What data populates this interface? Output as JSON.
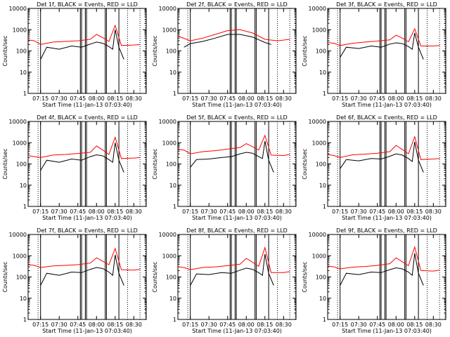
{
  "colors": {
    "events": "#000000",
    "lld": "#ff0000",
    "axes": "#000000",
    "background": "#ffffff"
  },
  "chart_data": [
    {
      "type": "line",
      "title": "Det  1f, BLACK = Events, RED = LLD",
      "xlabel": "Start Time (11-Jan-13 07:03:40)",
      "ylabel": "Counts/sec",
      "ylog": true,
      "ylim": [
        1,
        10000
      ],
      "xticks": [
        "07:15",
        "07:30",
        "07:45",
        "08:00",
        "08:15",
        "08:30"
      ],
      "yticks": [
        "1",
        "10",
        "100",
        "1000",
        "10000"
      ],
      "series": [
        {
          "name": "Events",
          "x": [
            "07:15",
            "07:20",
            "07:30",
            "07:40",
            "07:48",
            "07:55",
            "08:00",
            "08:05",
            "08:10",
            "08:13",
            "08:15",
            "08:18",
            "08:22"
          ],
          "y": [
            40,
            150,
            120,
            170,
            150,
            210,
            260,
            230,
            160,
            120,
            1000,
            150,
            40
          ]
        },
        {
          "name": "LLD",
          "x": [
            "07:05",
            "07:10",
            "07:15",
            "07:25",
            "07:35",
            "07:45",
            "07:55",
            "08:00",
            "08:05",
            "08:10",
            "08:15",
            "08:20",
            "08:30",
            "08:35"
          ],
          "y": [
            330,
            300,
            200,
            260,
            280,
            300,
            350,
            600,
            420,
            280,
            1600,
            180,
            190,
            200
          ]
        }
      ]
    },
    {
      "type": "line",
      "title": "Det  2f, BLACK = Events, RED = LLD",
      "xlabel": "Start Time (11-Jan-13 07:03:40)",
      "ylabel": "Counts/sec",
      "ylog": true,
      "ylim": [
        1,
        10000
      ],
      "xticks": [
        "07:15",
        "07:30",
        "07:45",
        "08:00",
        "08:15",
        "08:30"
      ],
      "yticks": [
        "1",
        "10",
        "100",
        "1000",
        "10000"
      ],
      "series": [
        {
          "name": "Events",
          "x": [
            "07:10",
            "07:15",
            "07:25",
            "07:35",
            "07:45",
            "07:55",
            "08:05",
            "08:15",
            "08:20"
          ],
          "y": [
            150,
            220,
            280,
            400,
            600,
            600,
            450,
            250,
            200
          ]
        },
        {
          "name": "LLD",
          "x": [
            "07:05",
            "07:15",
            "07:25",
            "07:35",
            "07:45",
            "07:55",
            "08:05",
            "08:15",
            "08:25",
            "08:35"
          ],
          "y": [
            500,
            300,
            400,
            600,
            900,
            1000,
            700,
            350,
            300,
            350
          ]
        }
      ]
    },
    {
      "type": "line",
      "title": "Det  3f, BLACK = Events, RED = LLD",
      "xlabel": "Start Time (11-Jan-13 07:03:40)",
      "ylabel": "Counts/sec",
      "ylog": true,
      "ylim": [
        1,
        10000
      ],
      "xticks": [
        "07:15",
        "07:30",
        "07:45",
        "08:00",
        "08:15",
        "08:30"
      ],
      "yticks": [
        "1",
        "10",
        "100",
        "1000",
        "10000"
      ],
      "series": [
        {
          "name": "Events",
          "x": [
            "07:15",
            "07:20",
            "07:30",
            "07:40",
            "07:48",
            "07:55",
            "08:00",
            "08:05",
            "08:10",
            "08:13",
            "08:15",
            "08:18",
            "08:22"
          ],
          "y": [
            50,
            150,
            130,
            170,
            150,
            210,
            240,
            220,
            160,
            120,
            700,
            150,
            40
          ]
        },
        {
          "name": "LLD",
          "x": [
            "07:05",
            "07:10",
            "07:15",
            "07:25",
            "07:35",
            "07:45",
            "07:55",
            "08:00",
            "08:05",
            "08:10",
            "08:15",
            "08:20",
            "08:30",
            "08:35"
          ],
          "y": [
            250,
            230,
            180,
            230,
            260,
            290,
            330,
            550,
            400,
            270,
            1100,
            170,
            170,
            180
          ]
        }
      ]
    },
    {
      "type": "line",
      "title": "Det  4f, BLACK = Events, RED = LLD",
      "xlabel": "Start Time (11-Jan-13 07:03:40)",
      "ylabel": "Counts/sec",
      "ylog": true,
      "ylim": [
        1,
        10000
      ],
      "xticks": [
        "07:15",
        "07:30",
        "07:45",
        "08:00",
        "08:15",
        "08:30"
      ],
      "yticks": [
        "1",
        "10",
        "100",
        "1000",
        "10000"
      ],
      "series": [
        {
          "name": "Events",
          "x": [
            "07:15",
            "07:20",
            "07:30",
            "07:40",
            "07:48",
            "07:55",
            "08:00",
            "08:05",
            "08:10",
            "08:13",
            "08:15",
            "08:18",
            "08:22"
          ],
          "y": [
            50,
            150,
            120,
            170,
            150,
            220,
            270,
            240,
            160,
            120,
            1000,
            150,
            40
          ]
        },
        {
          "name": "LLD",
          "x": [
            "07:05",
            "07:10",
            "07:15",
            "07:25",
            "07:35",
            "07:45",
            "07:55",
            "08:00",
            "08:05",
            "08:10",
            "08:15",
            "08:20",
            "08:30",
            "08:35"
          ],
          "y": [
            250,
            220,
            200,
            260,
            280,
            310,
            350,
            700,
            450,
            280,
            1800,
            180,
            190,
            200
          ]
        }
      ]
    },
    {
      "type": "line",
      "title": "Det  5f, BLACK = Events, RED = LLD",
      "xlabel": "Start Time (11-Jan-13 07:03:40)",
      "ylabel": "Counts/sec",
      "ylog": true,
      "ylim": [
        1,
        10000
      ],
      "xticks": [
        "07:15",
        "07:30",
        "07:45",
        "08:00",
        "08:15",
        "08:30"
      ],
      "yticks": [
        "1",
        "10",
        "100",
        "1000",
        "10000"
      ],
      "series": [
        {
          "name": "Events",
          "x": [
            "07:15",
            "07:20",
            "07:30",
            "07:40",
            "07:48",
            "07:55",
            "08:00",
            "08:05",
            "08:10",
            "08:13",
            "08:15",
            "08:18",
            "08:22"
          ],
          "y": [
            70,
            160,
            170,
            200,
            220,
            300,
            350,
            320,
            220,
            180,
            1200,
            150,
            40
          ]
        },
        {
          "name": "LLD",
          "x": [
            "07:05",
            "07:10",
            "07:15",
            "07:25",
            "07:35",
            "07:45",
            "07:55",
            "08:00",
            "08:05",
            "08:10",
            "08:15",
            "08:20",
            "08:30",
            "08:35"
          ],
          "y": [
            480,
            450,
            300,
            380,
            420,
            500,
            600,
            900,
            650,
            450,
            2200,
            260,
            250,
            280
          ]
        }
      ]
    },
    {
      "type": "line",
      "title": "Det  6f, BLACK = Events, RED = LLD",
      "xlabel": "Start Time (11-Jan-13 07:03:40)",
      "ylabel": "Counts/sec",
      "ylog": true,
      "ylim": [
        1,
        10000
      ],
      "xticks": [
        "07:15",
        "07:30",
        "07:45",
        "08:00",
        "08:15",
        "08:30"
      ],
      "yticks": [
        "1",
        "10",
        "100",
        "1000",
        "10000"
      ],
      "series": [
        {
          "name": "Events",
          "x": [
            "07:15",
            "07:20",
            "07:30",
            "07:40",
            "07:48",
            "07:55",
            "08:00",
            "08:05",
            "08:10",
            "08:13",
            "08:15",
            "08:18",
            "08:22"
          ],
          "y": [
            60,
            160,
            140,
            180,
            170,
            230,
            300,
            260,
            180,
            130,
            1100,
            150,
            40
          ]
        },
        {
          "name": "LLD",
          "x": [
            "07:05",
            "07:10",
            "07:15",
            "07:25",
            "07:35",
            "07:45",
            "07:55",
            "08:00",
            "08:05",
            "08:10",
            "08:15",
            "08:20",
            "08:30",
            "08:35"
          ],
          "y": [
            280,
            250,
            200,
            270,
            290,
            320,
            380,
            750,
            480,
            300,
            1900,
            160,
            170,
            180
          ]
        }
      ]
    },
    {
      "type": "line",
      "title": "Det  7f, BLACK = Events, RED = LLD",
      "xlabel": "Start Time (11-Jan-13 07:03:40)",
      "ylabel": "Counts/sec",
      "ylog": true,
      "ylim": [
        1,
        10000
      ],
      "xticks": [
        "07:15",
        "07:30",
        "07:45",
        "08:00",
        "08:15",
        "08:30"
      ],
      "yticks": [
        "1",
        "10",
        "100",
        "1000",
        "10000"
      ],
      "series": [
        {
          "name": "Events",
          "x": [
            "07:15",
            "07:20",
            "07:30",
            "07:40",
            "07:48",
            "07:55",
            "08:00",
            "08:05",
            "08:10",
            "08:13",
            "08:15",
            "08:18",
            "08:22"
          ],
          "y": [
            40,
            150,
            120,
            170,
            160,
            230,
            280,
            250,
            170,
            120,
            1100,
            150,
            40
          ]
        },
        {
          "name": "LLD",
          "x": [
            "07:05",
            "07:10",
            "07:15",
            "07:25",
            "07:35",
            "07:45",
            "07:55",
            "08:00",
            "08:05",
            "08:10",
            "08:15",
            "08:20",
            "08:30",
            "08:35"
          ],
          "y": [
            380,
            350,
            280,
            330,
            350,
            380,
            450,
            800,
            550,
            380,
            2200,
            220,
            210,
            230
          ]
        }
      ]
    },
    {
      "type": "line",
      "title": "Det  8f, BLACK = Events, RED = LLD",
      "xlabel": "Start Time (11-Jan-13 07:03:40)",
      "ylabel": "Counts/sec",
      "ylog": true,
      "ylim": [
        1,
        10000
      ],
      "xticks": [
        "07:15",
        "07:30",
        "07:45",
        "08:00",
        "08:15",
        "08:30"
      ],
      "yticks": [
        "1",
        "10",
        "100",
        "1000",
        "10000"
      ],
      "series": [
        {
          "name": "Events",
          "x": [
            "07:15",
            "07:20",
            "07:30",
            "07:40",
            "07:48",
            "07:55",
            "08:00",
            "08:05",
            "08:10",
            "08:13",
            "08:15",
            "08:18",
            "08:22"
          ],
          "y": [
            40,
            140,
            130,
            160,
            150,
            210,
            260,
            230,
            160,
            120,
            1200,
            150,
            40
          ]
        },
        {
          "name": "LLD",
          "x": [
            "07:05",
            "07:10",
            "07:15",
            "07:25",
            "07:35",
            "07:45",
            "07:55",
            "08:00",
            "08:05",
            "08:10",
            "08:15",
            "08:20",
            "08:30",
            "08:35"
          ],
          "y": [
            300,
            280,
            220,
            280,
            300,
            340,
            400,
            750,
            500,
            320,
            2400,
            160,
            160,
            180
          ]
        }
      ]
    },
    {
      "type": "line",
      "title": "Det  9f, BLACK = Events, RED = LLD",
      "xlabel": "Start Time (11-Jan-13 07:03:40)",
      "ylabel": "Counts/sec",
      "ylog": true,
      "ylim": [
        1,
        10000
      ],
      "xticks": [
        "07:15",
        "07:30",
        "07:45",
        "08:00",
        "08:15",
        "08:30"
      ],
      "yticks": [
        "1",
        "10",
        "100",
        "1000",
        "10000"
      ],
      "series": [
        {
          "name": "Events",
          "x": [
            "07:15",
            "07:20",
            "07:30",
            "07:40",
            "07:48",
            "07:55",
            "08:00",
            "08:05",
            "08:10",
            "08:13",
            "08:15",
            "08:18",
            "08:22"
          ],
          "y": [
            40,
            150,
            130,
            170,
            160,
            220,
            270,
            240,
            170,
            120,
            1300,
            150,
            40
          ]
        },
        {
          "name": "LLD",
          "x": [
            "07:05",
            "07:10",
            "07:15",
            "07:25",
            "07:35",
            "07:45",
            "07:55",
            "08:00",
            "08:05",
            "08:10",
            "08:15",
            "08:20",
            "08:30",
            "08:35"
          ],
          "y": [
            330,
            300,
            240,
            290,
            310,
            350,
            420,
            800,
            520,
            340,
            2600,
            200,
            190,
            210
          ]
        }
      ]
    }
  ]
}
